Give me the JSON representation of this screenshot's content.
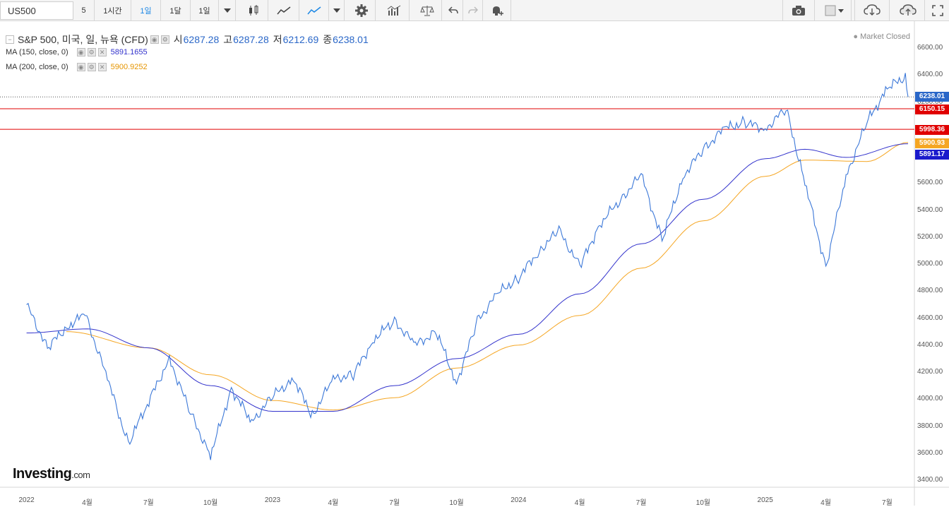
{
  "toolbar": {
    "symbol": "US500",
    "interval_5": "5",
    "interval_1h": "1시간",
    "interval_1d": "1일",
    "interval_1m": "1달",
    "range": "1일"
  },
  "legend": {
    "title": "S&P 500, 미국, 일, 뉴욕 (CFD)",
    "open_label": "시",
    "open": "6287.28",
    "high_label": "고",
    "high": "6287.28",
    "low_label": "저",
    "low": "6212.69",
    "close_label": "종",
    "close": "6238.01",
    "ma150_label": "MA (150, close, 0)",
    "ma150_value": "5891.1655",
    "ma200_label": "MA (200, close, 0)",
    "ma200_value": "5900.9252"
  },
  "status": "Market Closed",
  "y_axis": [
    "6600.00",
    "6400.00",
    "6200.00",
    "6000.00",
    "5800.00",
    "5600.00",
    "5400.00",
    "5200.00",
    "5000.00",
    "4800.00",
    "4600.00",
    "4400.00",
    "4200.00",
    "4000.00",
    "3800.00",
    "3600.00",
    "3400.00"
  ],
  "x_axis": [
    "2022",
    "4월",
    "7월",
    "10월",
    "2023",
    "4월",
    "7월",
    "10월",
    "2024",
    "4월",
    "7월",
    "10월",
    "2025",
    "4월",
    "7월"
  ],
  "tags": {
    "last": "6238.01",
    "res1": "6150.15",
    "res2": "5998.36",
    "ma200": "5900.93",
    "ma150": "5891.17"
  },
  "colors": {
    "price": "#3c78d8",
    "ma150": "#3333cc",
    "ma200": "#f5a623",
    "resistance": "#e00000",
    "last": "#2a67c8"
  },
  "logo": {
    "brand": "Investing",
    "suffix": ".com"
  },
  "chart_data": {
    "type": "line",
    "y_range": [
      3400,
      6600
    ],
    "horizontal_lines": [
      6150.15,
      5998.36
    ],
    "last_price": 6238.01,
    "series": [
      {
        "name": "S&P 500",
        "points": [
          [
            "2022-01",
            4700
          ],
          [
            "2022-02",
            4380
          ],
          [
            "2022-03",
            4530
          ],
          [
            "2022-03-29",
            4630
          ],
          [
            "2022-05",
            4150
          ],
          [
            "2022-06",
            3670
          ],
          [
            "2022-08",
            4300
          ],
          [
            "2022-09",
            3900
          ],
          [
            "2022-10",
            3580
          ],
          [
            "2022-11",
            4080
          ],
          [
            "2022-12",
            3830
          ],
          [
            "2023-01",
            4020
          ],
          [
            "2023-02",
            4150
          ],
          [
            "2023-03",
            3880
          ],
          [
            "2023-04",
            4150
          ],
          [
            "2023-05",
            4180
          ],
          [
            "2023-06",
            4450
          ],
          [
            "2023-07",
            4580
          ],
          [
            "2023-08",
            4400
          ],
          [
            "2023-09",
            4500
          ],
          [
            "2023-10",
            4120
          ],
          [
            "2023-11",
            4580
          ],
          [
            "2023-12",
            4780
          ],
          [
            "2024-01",
            4900
          ],
          [
            "2024-02",
            5100
          ],
          [
            "2024-03",
            5250
          ],
          [
            "2024-04",
            4980
          ],
          [
            "2024-05",
            5300
          ],
          [
            "2024-06",
            5480
          ],
          [
            "2024-07",
            5660
          ],
          [
            "2024-08",
            5180
          ],
          [
            "2024-09",
            5650
          ],
          [
            "2024-10",
            5850
          ],
          [
            "2024-11",
            6000
          ],
          [
            "2024-12",
            6050
          ],
          [
            "2025-01",
            6000
          ],
          [
            "2025-02",
            6150
          ],
          [
            "2025-03",
            5600
          ],
          [
            "2025-04",
            4980
          ],
          [
            "2025-05",
            5650
          ],
          [
            "2025-06",
            6050
          ],
          [
            "2025-07",
            6300
          ],
          [
            "2025-07-28",
            6390
          ],
          [
            "2025-08",
            6238
          ]
        ]
      },
      {
        "name": "MA (150, close, 0)",
        "points": [
          [
            "2022-01",
            4490
          ],
          [
            "2022-04",
            4520
          ],
          [
            "2022-07",
            4380
          ],
          [
            "2022-10",
            4100
          ],
          [
            "2023-01",
            3910
          ],
          [
            "2023-04",
            3910
          ],
          [
            "2023-07",
            4100
          ],
          [
            "2023-10",
            4300
          ],
          [
            "2024-01",
            4480
          ],
          [
            "2024-04",
            4780
          ],
          [
            "2024-07",
            5150
          ],
          [
            "2024-10",
            5480
          ],
          [
            "2025-01",
            5780
          ],
          [
            "2025-03",
            5850
          ],
          [
            "2025-05",
            5790
          ],
          [
            "2025-08",
            5891
          ]
        ]
      },
      {
        "name": "MA (200, close, 0)",
        "points": [
          [
            "2022-03",
            4500
          ],
          [
            "2022-07",
            4380
          ],
          [
            "2022-10",
            4180
          ],
          [
            "2023-01",
            3990
          ],
          [
            "2023-04",
            3920
          ],
          [
            "2023-07",
            4010
          ],
          [
            "2023-10",
            4230
          ],
          [
            "2024-01",
            4400
          ],
          [
            "2024-04",
            4620
          ],
          [
            "2024-07",
            4970
          ],
          [
            "2024-10",
            5320
          ],
          [
            "2025-01",
            5650
          ],
          [
            "2025-03",
            5770
          ],
          [
            "2025-06",
            5760
          ],
          [
            "2025-08",
            5901
          ]
        ]
      }
    ]
  }
}
